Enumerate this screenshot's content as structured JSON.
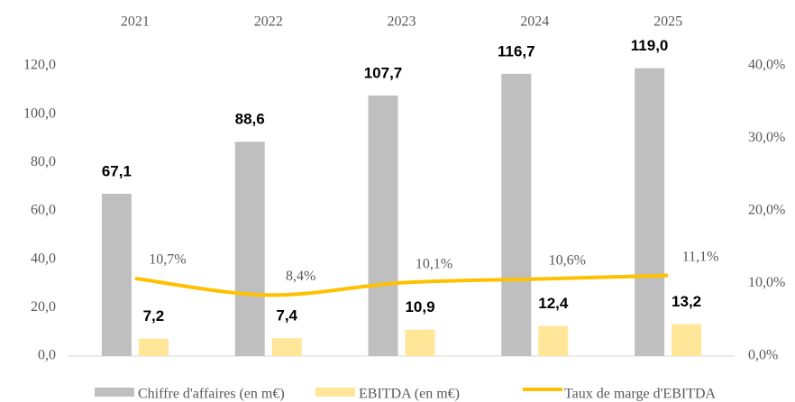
{
  "chart_data": {
    "type": "bar",
    "categories": [
      "2021",
      "2022",
      "2023",
      "2024",
      "2025"
    ],
    "series": [
      {
        "name": "Chiffre d'affaires (en m€)",
        "type": "bar",
        "color": "#bfbfbf",
        "values": [
          67.1,
          88.6,
          107.7,
          116.7,
          119.0
        ],
        "value_labels": [
          "67,1",
          "88,6",
          "107,7",
          "116,7",
          "119,0"
        ]
      },
      {
        "name": "EBITDA (en m€)",
        "type": "bar",
        "color": "#ffe699",
        "values": [
          7.2,
          7.4,
          10.9,
          12.4,
          13.2
        ],
        "value_labels": [
          "7,2",
          "7,4",
          "10,9",
          "12,4",
          "13,2"
        ]
      },
      {
        "name": "Taux de marge d'EBITDA",
        "type": "line",
        "axis": "y2",
        "color": "#ffc000",
        "values": [
          10.7,
          8.4,
          10.1,
          10.6,
          11.1
        ],
        "value_labels": [
          "10,7%",
          "8,4%",
          "10,1%",
          "10,6%",
          "11,1%"
        ]
      }
    ],
    "ylim": [
      0,
      120
    ],
    "yticks": [
      {
        "value": 0,
        "label": "0,0"
      },
      {
        "value": 20,
        "label": "20,0"
      },
      {
        "value": 40,
        "label": "40,0"
      },
      {
        "value": 60,
        "label": "60,0"
      },
      {
        "value": 80,
        "label": "80,0"
      },
      {
        "value": 100,
        "label": "100,0"
      },
      {
        "value": 120,
        "label": "120,0"
      }
    ],
    "y2lim": [
      0,
      40
    ],
    "y2ticks": [
      {
        "value": 0,
        "label": "0,0%"
      },
      {
        "value": 10,
        "label": "10,0%"
      },
      {
        "value": 20,
        "label": "20,0%"
      },
      {
        "value": 30,
        "label": "30,0%"
      },
      {
        "value": 40,
        "label": "40,0%"
      }
    ],
    "grid": false,
    "legend": "bottom"
  }
}
